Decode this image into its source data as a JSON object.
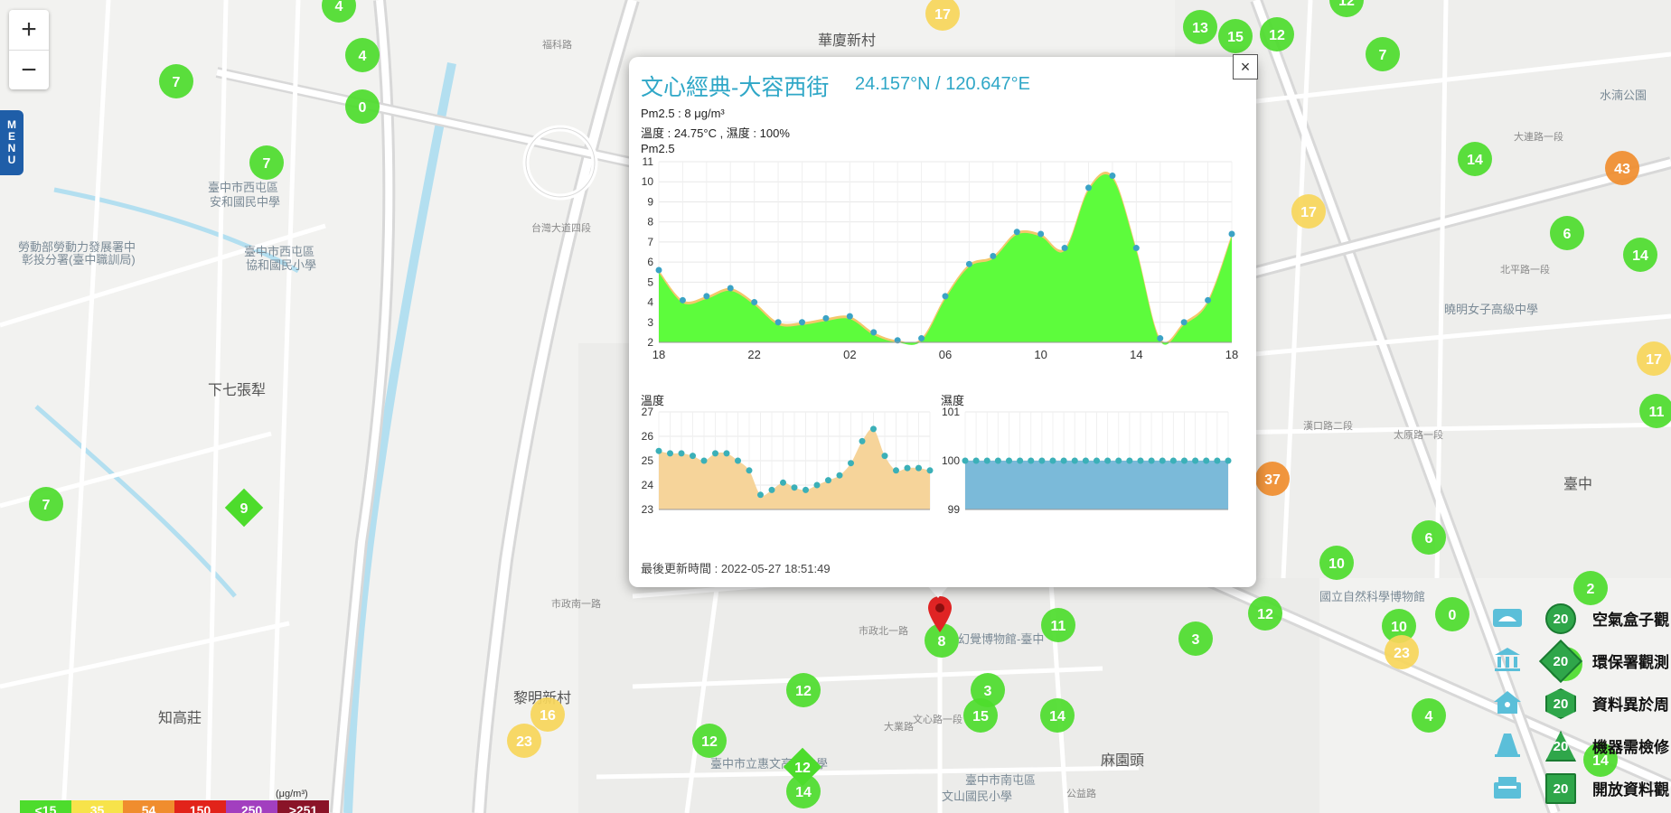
{
  "map": {
    "zoom_in": "+",
    "zoom_out": "−",
    "menu_label": [
      "M",
      "E",
      "N",
      "U"
    ],
    "place_labels": [
      {
        "text": "華廈新村",
        "cls": "big"
      },
      {
        "text": "下七張犁",
        "cls": "big"
      },
      {
        "text": "知高莊",
        "cls": "big"
      },
      {
        "text": "黎明新村",
        "cls": "big"
      },
      {
        "text": "麻園頭",
        "cls": "big"
      },
      {
        "text": "臺中",
        "cls": "big"
      },
      {
        "text": "臺中市西屯區",
        "cls": "poi"
      },
      {
        "text": "安和國民中學",
        "cls": "poi"
      },
      {
        "text": "勞動部勞動力發展署中",
        "cls": "poi"
      },
      {
        "text": "彰投分署(臺中職訓局)",
        "cls": "poi"
      },
      {
        "text": "臺中市西屯區",
        "cls": "poi"
      },
      {
        "text": "協和國民小學",
        "cls": "poi"
      },
      {
        "text": "福科路",
        "cls": "road"
      },
      {
        "text": "台灣大道四段",
        "cls": "road"
      },
      {
        "text": "大連路一段",
        "cls": "road"
      },
      {
        "text": "北平路一段",
        "cls": "road"
      },
      {
        "text": "太原路一段",
        "cls": "road"
      },
      {
        "text": "漢口路二段",
        "cls": "road"
      },
      {
        "text": "市政北一路",
        "cls": "road"
      },
      {
        "text": "市政南一路",
        "cls": "road"
      },
      {
        "text": "大業路",
        "cls": "road"
      },
      {
        "text": "公益路",
        "cls": "road"
      },
      {
        "text": "幻覺博物館-臺中",
        "cls": "poi"
      },
      {
        "text": "國立自然科學博物館",
        "cls": "poi"
      },
      {
        "text": "臺中市立惠文高級中學",
        "cls": "poi"
      },
      {
        "text": "曉明女子高級中學",
        "cls": "poi"
      },
      {
        "text": "水湳公園",
        "cls": "poi"
      },
      {
        "text": "臺中市南屯區",
        "cls": "poi"
      },
      {
        "text": "文山國民小學",
        "cls": "poi"
      },
      {
        "text": "文心路一段",
        "cls": "road"
      }
    ],
    "markers": [
      {
        "v": "4",
        "c": "#4ddc2c",
        "s": "c"
      },
      {
        "v": "4",
        "c": "#4ddc2c",
        "s": "c"
      },
      {
        "v": "7",
        "c": "#4ddc2c",
        "s": "c"
      },
      {
        "v": "0",
        "c": "#4ddc2c",
        "s": "c"
      },
      {
        "v": "7",
        "c": "#4ddc2c",
        "s": "c"
      },
      {
        "v": "7",
        "c": "#4ddc2c",
        "s": "c"
      },
      {
        "v": "9",
        "c": "#4ddc2c",
        "s": "d"
      },
      {
        "v": "17",
        "c": "#f7d65a",
        "s": "c"
      },
      {
        "v": "13",
        "c": "#4ddc2c",
        "s": "c"
      },
      {
        "v": "15",
        "c": "#4ddc2c",
        "s": "c"
      },
      {
        "v": "12",
        "c": "#4ddc2c",
        "s": "c"
      },
      {
        "v": "12",
        "c": "#4ddc2c",
        "s": "c"
      },
      {
        "v": "7",
        "c": "#4ddc2c",
        "s": "c"
      },
      {
        "v": "14",
        "c": "#4ddc2c",
        "s": "c"
      },
      {
        "v": "43",
        "c": "#f08d2e",
        "s": "c"
      },
      {
        "v": "17",
        "c": "#f7d65a",
        "s": "c"
      },
      {
        "v": "6",
        "c": "#4ddc2c",
        "s": "c"
      },
      {
        "v": "14",
        "c": "#4ddc2c",
        "s": "c"
      },
      {
        "v": "17",
        "c": "#f7d65a",
        "s": "c"
      },
      {
        "v": "11",
        "c": "#4ddc2c",
        "s": "c"
      },
      {
        "v": "37",
        "c": "#f08d2e",
        "s": "c"
      },
      {
        "v": "6",
        "c": "#4ddc2c",
        "s": "c"
      },
      {
        "v": "10",
        "c": "#4ddc2c",
        "s": "c"
      },
      {
        "v": "2",
        "c": "#4ddc2c",
        "s": "c"
      },
      {
        "v": "12",
        "c": "#4ddc2c",
        "s": "c"
      },
      {
        "v": "10",
        "c": "#4ddc2c",
        "s": "c"
      },
      {
        "v": "0",
        "c": "#4ddc2c",
        "s": "c"
      },
      {
        "v": "23",
        "c": "#f7d65a",
        "s": "c"
      },
      {
        "v": "11",
        "c": "#4ddc2c",
        "s": "c"
      },
      {
        "v": "3",
        "c": "#4ddc2c",
        "s": "c"
      },
      {
        "v": "8",
        "c": "#4ddc2c",
        "s": "c"
      },
      {
        "v": "12",
        "c": "#4ddc2c",
        "s": "c"
      },
      {
        "v": "3",
        "c": "#4ddc2c",
        "s": "c"
      },
      {
        "v": "15",
        "c": "#4ddc2c",
        "s": "c"
      },
      {
        "v": "14",
        "c": "#4ddc2c",
        "s": "c"
      },
      {
        "v": "12",
        "c": "#4ddc2c",
        "s": "c"
      },
      {
        "v": "12",
        "c": "#4ddc2c",
        "s": "d"
      },
      {
        "v": "14",
        "c": "#4ddc2c",
        "s": "c"
      },
      {
        "v": "16",
        "c": "#f7d65a",
        "s": "c"
      },
      {
        "v": "23",
        "c": "#f7d65a",
        "s": "c"
      },
      {
        "v": "4",
        "c": "#4ddc2c",
        "s": "c"
      },
      {
        "v": "14",
        "c": "#4ddc2c",
        "s": "c"
      },
      {
        "v": "12",
        "c": "#4ddc2c",
        "s": "c"
      }
    ]
  },
  "popup": {
    "title": "文心經典-大容西街",
    "coord": "24.157°N / 120.647°E",
    "pm25_line": "Pm2.5 : 8 μg/m³",
    "temp_humid_line": "溫度 : 24.75°C , 濕度 : 100%",
    "pm_chart_label": "Pm2.5",
    "temp_chart_label": "溫度",
    "humid_chart_label": "濕度",
    "updated": "最後更新時間 : 2022-05-27 18:51:49",
    "close": "×"
  },
  "chart_data": [
    {
      "type": "area",
      "title": "Pm2.5",
      "x_ticks": [
        "18",
        "22",
        "02",
        "06",
        "10",
        "14",
        "18"
      ],
      "ylim": [
        2,
        11
      ],
      "y_ticks": [
        2,
        3,
        4,
        5,
        6,
        7,
        8,
        9,
        10,
        11
      ],
      "values": [
        5.6,
        4.1,
        4.3,
        4.7,
        4.0,
        3.0,
        3.0,
        3.2,
        3.3,
        2.5,
        2.1,
        2.2,
        4.3,
        5.9,
        6.3,
        7.5,
        7.4,
        6.7,
        9.7,
        10.3,
        6.7,
        2.2,
        3.0,
        4.1,
        7.4
      ],
      "colors": {
        "fill": "#5dfc3c",
        "above_threshold": "#f3c76b",
        "point": "#3ba3c5"
      }
    },
    {
      "type": "area",
      "title": "溫度",
      "ylim": [
        23,
        27
      ],
      "y_ticks": [
        23,
        24,
        25,
        26,
        27
      ],
      "values": [
        25.4,
        25.3,
        25.3,
        25.2,
        25.0,
        25.3,
        25.3,
        25.0,
        24.6,
        23.6,
        23.8,
        24.1,
        23.9,
        23.8,
        24.0,
        24.2,
        24.4,
        24.9,
        25.8,
        26.3,
        25.2,
        24.6,
        24.7,
        24.7,
        24.6
      ],
      "colors": {
        "fill": "#f6d49a",
        "point": "#3bb0b8"
      }
    },
    {
      "type": "area",
      "title": "濕度",
      "ylim": [
        99,
        101
      ],
      "y_ticks": [
        99,
        100,
        101
      ],
      "values": [
        100,
        100,
        100,
        100,
        100,
        100,
        100,
        100,
        100,
        100,
        100,
        100,
        100,
        100,
        100,
        100,
        100,
        100,
        100,
        100,
        100,
        100,
        100,
        100,
        100
      ],
      "colors": {
        "fill": "#7bbad9",
        "point": "#3bb0b8"
      }
    }
  ],
  "legend": {
    "items": [
      {
        "label": "空氣盒子觀",
        "value": "20",
        "icon": "airbox-icon"
      },
      {
        "label": "環保署觀測",
        "value": "20",
        "icon": "epa-icon"
      },
      {
        "label": "資料異於周",
        "value": "20",
        "icon": "house-icon"
      },
      {
        "label": "機器需檢修",
        "value": "20",
        "icon": "cone-icon"
      },
      {
        "label": "開放資料觀",
        "value": "20",
        "icon": "open-data-icon"
      }
    ]
  },
  "scale": {
    "items": [
      {
        "label": "<15",
        "color": "#4ddc2c"
      },
      {
        "label": "35",
        "color": "#f7e34a"
      },
      {
        "label": "54",
        "color": "#f08d2e"
      },
      {
        "label": "150",
        "color": "#e2231a"
      },
      {
        "label": "250",
        "color": "#a23fbf"
      },
      {
        "label": ">251",
        "color": "#8a1428"
      }
    ],
    "unit": "(μg/m³)"
  }
}
